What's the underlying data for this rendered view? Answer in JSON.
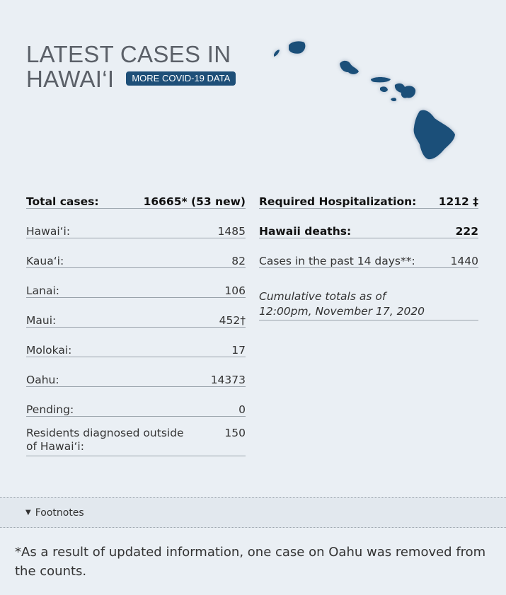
{
  "header": {
    "title_line1": "LATEST CASES IN",
    "title_line2": "HAWAI‘I",
    "more_button": "MORE COVID-19 DATA"
  },
  "map": {
    "icon": "hawaii-islands-map",
    "color": "#1b4f79"
  },
  "left_table": {
    "total": {
      "label": "Total cases:",
      "value": "16665* (53 new)"
    },
    "rows": [
      {
        "label": "Hawai‘i:",
        "value": "1485"
      },
      {
        "label": "Kaua‘i:",
        "value": "82"
      },
      {
        "label": "Lanai:",
        "value": "106"
      },
      {
        "label": "Maui:",
        "value": "452†"
      },
      {
        "label": "Molokai:",
        "value": "17"
      },
      {
        "label": "Oahu:",
        "value": "14373"
      },
      {
        "label": "Pending:",
        "value": "0"
      },
      {
        "label": "Residents diagnosed outside of Hawai‘i:",
        "value": "150"
      }
    ]
  },
  "right_table": {
    "hospitalization": {
      "label": "Required Hospitalization:",
      "value": "1212 ‡"
    },
    "deaths": {
      "label": "Hawaii deaths:",
      "value": "222"
    },
    "past14": {
      "label": "Cases in the past 14 days**:",
      "value": "1440"
    },
    "note": "Cumulative totals as of 12:00pm, November 17, 2020"
  },
  "footnotes": {
    "toggle_label": "Footnotes",
    "text": "*As a result of updated information, one case on Oahu was removed from the counts."
  },
  "colors": {
    "accent": "#1e4f78",
    "background": "#eaeff4"
  }
}
